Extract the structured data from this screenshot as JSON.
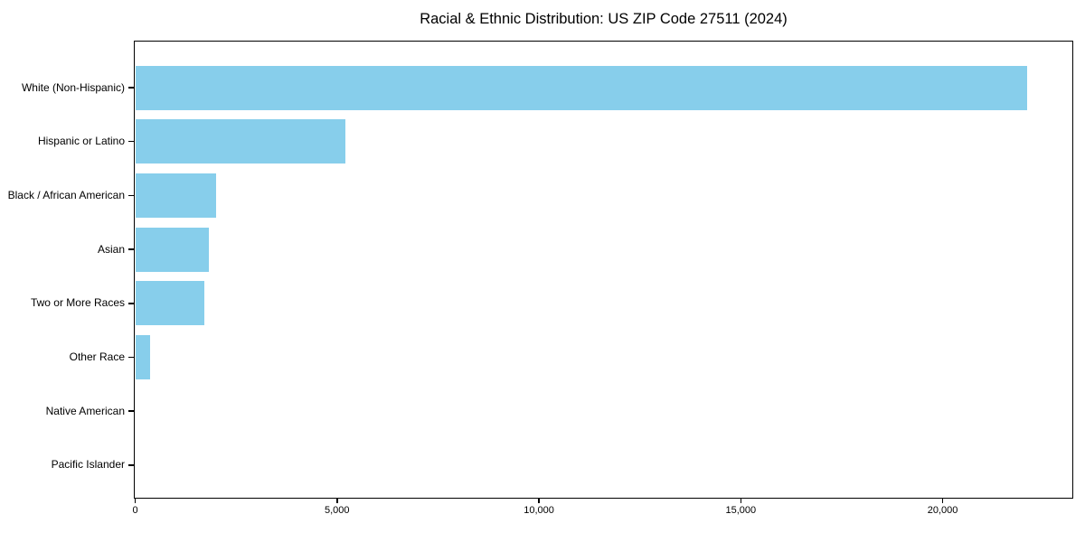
{
  "chart_data": {
    "type": "bar",
    "orientation": "horizontal",
    "title": "Racial & Ethnic Distribution: US ZIP Code 27511 (2024)",
    "categories": [
      "White (Non-Hispanic)",
      "Hispanic or Latino",
      "Black / African American",
      "Asian",
      "Two or More Races",
      "Other Race",
      "Native American",
      "Pacific Islander"
    ],
    "values": [
      22100,
      5200,
      2000,
      1830,
      1710,
      360,
      0,
      0
    ],
    "xlabel": "",
    "ylabel": "",
    "xlim": [
      0,
      23200
    ],
    "x_ticks": [
      0,
      5000,
      10000,
      15000,
      20000
    ],
    "x_tick_labels": [
      "0",
      "5,000",
      "10,000",
      "15,000",
      "20,000"
    ],
    "bar_color": "#87CEEB",
    "axis_color": "#000000",
    "text_color": "#000000",
    "background_color": "#ffffff",
    "grid": false,
    "legend": null
  }
}
